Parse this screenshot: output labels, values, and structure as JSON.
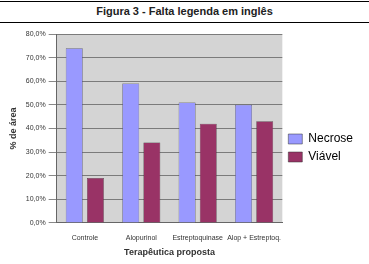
{
  "chart_data": {
    "type": "bar",
    "title": "Figura 3 - Falta legenda em inglês",
    "x_label": "Terapêutica proposta",
    "y_label": "% de área",
    "categories": [
      "Controle",
      "Alopurinol",
      "Estreptoquinase",
      "Alop + Estreptoq."
    ],
    "series": [
      {
        "name": "Necrose",
        "color": "#9999ff",
        "values": [
          74,
          59,
          51,
          50
        ]
      },
      {
        "name": "Viável",
        "color": "#993366",
        "values": [
          19,
          34,
          42,
          43
        ]
      }
    ],
    "ylim": [
      0,
      80
    ],
    "yticks": [
      {
        "value": 0,
        "label": "0,0%"
      },
      {
        "value": 10,
        "label": "10,0%"
      },
      {
        "value": 20,
        "label": "20,0%"
      },
      {
        "value": 30,
        "label": "30,0%"
      },
      {
        "value": 40,
        "label": "40,0%"
      },
      {
        "value": 50,
        "label": "50,0%"
      },
      {
        "value": 60,
        "label": "60,0%"
      },
      {
        "value": 70,
        "label": "70,0%"
      },
      {
        "value": 80,
        "label": "80,0%"
      }
    ],
    "grid": true,
    "legend": "right"
  }
}
